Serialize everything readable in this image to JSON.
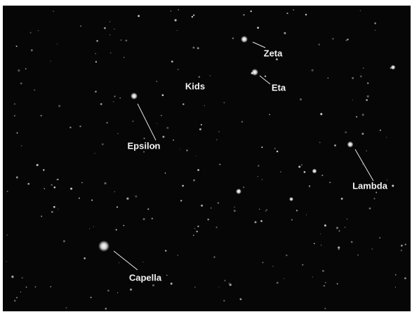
{
  "labels": [
    "Zeta",
    "Eta",
    "Kids",
    "Epsilon",
    "Lambda",
    "Capella"
  ]
}
